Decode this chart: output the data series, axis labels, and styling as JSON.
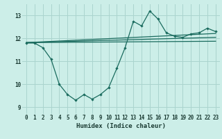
{
  "title": "",
  "xlabel": "Humidex (Indice chaleur)",
  "ylabel": "",
  "bg_color": "#cceee8",
  "grid_color": "#aad4ce",
  "line_color": "#1a6b5e",
  "xlim": [
    -0.5,
    23.5
  ],
  "ylim": [
    8.7,
    13.5
  ],
  "yticks": [
    9,
    10,
    11,
    12,
    13
  ],
  "xticks": [
    0,
    1,
    2,
    3,
    4,
    5,
    6,
    7,
    8,
    9,
    10,
    11,
    12,
    13,
    14,
    15,
    16,
    17,
    18,
    19,
    20,
    21,
    22,
    23
  ],
  "line1_x": [
    0,
    1,
    2,
    3,
    4,
    5,
    6,
    7,
    8,
    9,
    10,
    11,
    12,
    13,
    14,
    15,
    16,
    17,
    18,
    19,
    20,
    21,
    22,
    23
  ],
  "line1_y": [
    11.8,
    11.8,
    11.6,
    11.1,
    10.0,
    9.55,
    9.3,
    9.55,
    9.35,
    9.55,
    9.85,
    10.7,
    11.6,
    12.75,
    12.55,
    13.2,
    12.85,
    12.25,
    12.1,
    12.05,
    12.2,
    12.25,
    12.45,
    12.3
  ],
  "line2_x": [
    0,
    23
  ],
  "line2_y": [
    11.82,
    12.22
  ],
  "line3_x": [
    0,
    23
  ],
  "line3_y": [
    11.82,
    12.05
  ],
  "line4_x": [
    0,
    23
  ],
  "line4_y": [
    11.82,
    11.88
  ]
}
